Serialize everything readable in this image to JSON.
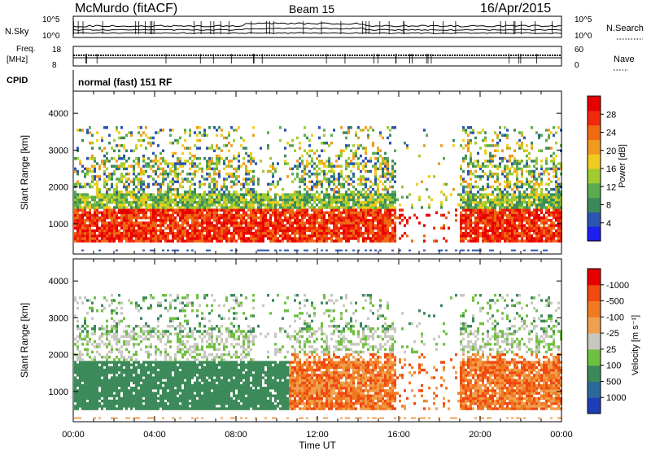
{
  "header": {
    "station": "McMurdo (fitACF)",
    "beam": "Beam 15",
    "date": "16/Apr/2015",
    "cpid_label": "CPID",
    "cpid_value": "normal (fast) 151 RF"
  },
  "noise_panel": {
    "left_label": "N.Sky",
    "right_label": "N.Search",
    "left_ticks": [
      "10^5",
      "10^0"
    ],
    "right_ticks": [
      "10^5",
      "10^0"
    ]
  },
  "freq_panel": {
    "left_label_1": "Freq.",
    "left_label_2": "[MHz]",
    "right_label": "Nave",
    "left_ticks": [
      "18",
      "8"
    ],
    "right_ticks": [
      "60",
      "0"
    ]
  },
  "colors": {
    "power": [
      "#1e1ef0",
      "#2a55b0",
      "#3c8a5a",
      "#5aaa50",
      "#a0cc30",
      "#f0cc20",
      "#f09a20",
      "#f06a14",
      "#f02a0a",
      "#e80000"
    ],
    "velocity": [
      "#e80000",
      "#f04a10",
      "#f07a20",
      "#f0a050",
      "#c8c8c0",
      "#70c040",
      "#3c8a5a",
      "#2a6a9a",
      "#1e3eb8"
    ]
  },
  "chart_data": [
    {
      "type": "heatmap",
      "name": "power",
      "ylabel": "Slant Range [km]",
      "xlabel": "Time UT",
      "yticks": [
        "1000",
        "2000",
        "3000",
        "4000"
      ],
      "ylim": [
        180,
        4600
      ],
      "xticks": [
        "00:00",
        "04:00",
        "08:00",
        "12:00",
        "16:00",
        "20:00",
        "00:00"
      ],
      "colorbar_title": "Power [dB]",
      "colorbar_ticks": [
        "4",
        "8",
        "12",
        "16",
        "20",
        "24",
        "28"
      ]
    },
    {
      "type": "heatmap",
      "name": "velocity",
      "ylabel": "Slant Range [km]",
      "xlabel": "Time UT",
      "yticks": [
        "1000",
        "2000",
        "3000",
        "4000"
      ],
      "ylim": [
        180,
        4600
      ],
      "xticks": [
        "00:00",
        "04:00",
        "08:00",
        "12:00",
        "16:00",
        "20:00",
        "00:00"
      ],
      "colorbar_title": "Velocity [m s⁻¹]",
      "colorbar_ticks": [
        "1000",
        "500",
        "100",
        "25",
        "-25",
        "-100",
        "-500",
        "-1000"
      ]
    }
  ]
}
